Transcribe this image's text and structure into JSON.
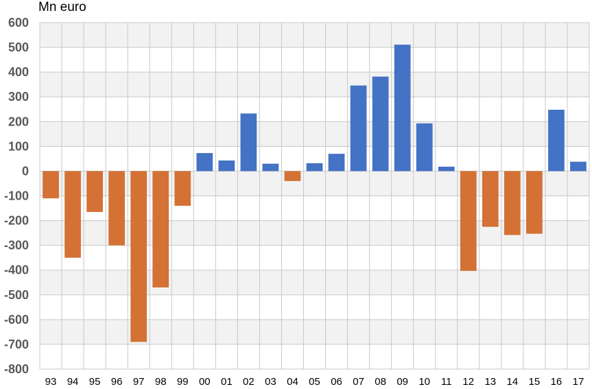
{
  "unit_label": "Mn euro",
  "colors": {
    "positive": "#4472C4",
    "negative": "#D47135",
    "band_shaded": "#F2F2F2",
    "grid": "#C8C8C8"
  },
  "chart_data": {
    "type": "bar",
    "title": "",
    "xlabel": "",
    "ylabel": "Mn euro",
    "ylim": [
      -800,
      600
    ],
    "yticks": [
      600,
      500,
      400,
      300,
      200,
      100,
      0,
      -100,
      -200,
      -300,
      -400,
      -500,
      -600,
      -700,
      -800
    ],
    "grid": true,
    "categories": [
      "93",
      "94",
      "95",
      "96",
      "97",
      "98",
      "99",
      "00",
      "01",
      "02",
      "03",
      "04",
      "05",
      "06",
      "07",
      "08",
      "09",
      "10",
      "11",
      "12",
      "13",
      "14",
      "15",
      "16",
      "17"
    ],
    "values": [
      -110,
      -350,
      -165,
      -300,
      -690,
      -470,
      -140,
      73,
      43,
      233,
      30,
      -40,
      32,
      70,
      346,
      382,
      511,
      193,
      18,
      -403,
      -225,
      -258,
      -253,
      248,
      38
    ]
  }
}
